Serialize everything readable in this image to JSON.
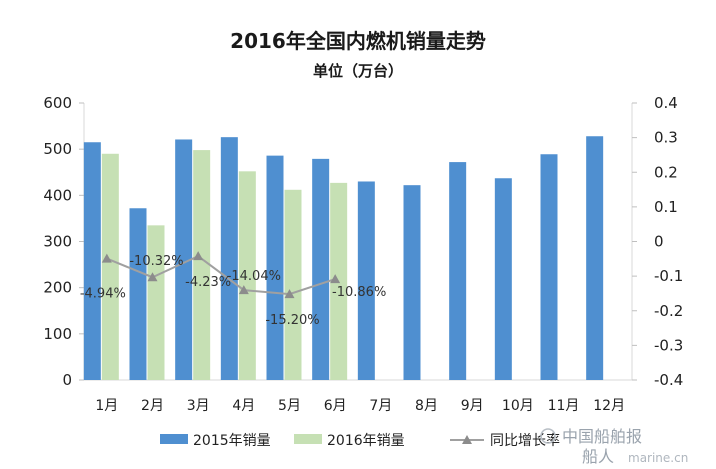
{
  "chart_data": {
    "type": "bar",
    "title": "2016年全国内燃机销量走势",
    "subtitle": "单位（万台）",
    "categories": [
      "1月",
      "2月",
      "3月",
      "4月",
      "5月",
      "6月",
      "7月",
      "8月",
      "9月",
      "10月",
      "11月",
      "12月"
    ],
    "series": [
      {
        "name": "2015年销量",
        "type": "bar",
        "axis": "left",
        "color": "#4f8fd0",
        "values": [
          515,
          372,
          521,
          526,
          486,
          479,
          430,
          422,
          472,
          437,
          489,
          528
        ]
      },
      {
        "name": "2016年销量",
        "type": "bar",
        "axis": "left",
        "color": "#c6e0b4",
        "values": [
          490,
          335,
          498,
          452,
          412,
          427,
          null,
          null,
          null,
          null,
          null,
          null
        ]
      },
      {
        "name": "同比增长率",
        "type": "line",
        "axis": "right",
        "color": "#a0a0a0",
        "values": [
          -0.0494,
          -0.1032,
          -0.0423,
          -0.1404,
          -0.152,
          -0.1086,
          null,
          null,
          null,
          null,
          null,
          null
        ],
        "labels": [
          "-4.94%",
          "-10.32%",
          "-4.23%",
          "-14.04%",
          "-15.20%",
          "-10.86%"
        ]
      }
    ],
    "y_left": {
      "ylim": [
        0,
        600
      ],
      "ticks": [
        "0",
        "100",
        "200",
        "300",
        "400",
        "500",
        "600"
      ]
    },
    "y_right": {
      "ylim": [
        -0.4,
        0.4
      ],
      "ticks": [
        "-0.4",
        "-0.3",
        "-0.2",
        "-0.1",
        "0",
        "0.1",
        "0.2",
        "0.3",
        "0.4"
      ]
    },
    "legend": {
      "position": "bottom",
      "items": [
        "2015年销量",
        "2016年销量",
        "同比增长率"
      ]
    },
    "grid": false
  },
  "watermark": {
    "line1": "中国船舶报",
    "line2": "船人",
    "line3": "marine.cn"
  }
}
